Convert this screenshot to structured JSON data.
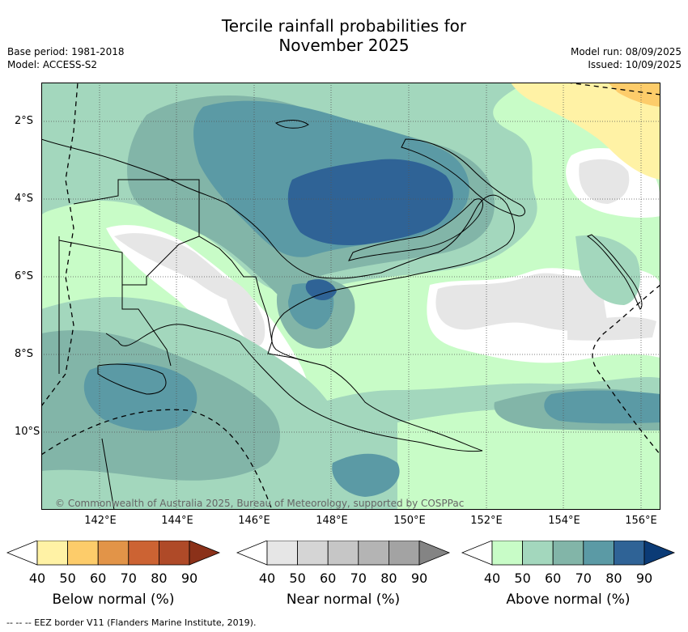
{
  "title": {
    "line1": "Tercile rainfall probabilities for",
    "line2": "November 2025"
  },
  "meta_left": {
    "base_period": "Base period: 1981-2018",
    "model": "Model: ACCESS-S2"
  },
  "meta_right": {
    "model_run": "Model run: 08/09/2025",
    "issued": "Issued: 10/09/2025"
  },
  "map": {
    "copyright": "© Commonwealth of Australia 2025, Bureau of Meteorology, supported by COSPPac",
    "lon_ticks": [
      "142°E",
      "144°E",
      "146°E",
      "148°E",
      "150°E",
      "152°E",
      "154°E",
      "156°E"
    ],
    "lat_ticks": [
      "2°S",
      "4°S",
      "6°S",
      "8°S",
      "10°S"
    ],
    "lon_range": [
      140.5,
      156.5
    ],
    "lat_range": [
      -12.0,
      -1.0
    ]
  },
  "colorbars": [
    {
      "name": "below",
      "label": "Below normal (%)",
      "ticks": [
        "40",
        "50",
        "60",
        "70",
        "80",
        "90"
      ],
      "colors": [
        "#fff2a5",
        "#fdcc6a",
        "#e29448",
        "#cc6333",
        "#af4a28",
        "#8b3119"
      ]
    },
    {
      "name": "near",
      "label": "Near normal (%)",
      "ticks": [
        "40",
        "50",
        "60",
        "70",
        "80",
        "90"
      ],
      "colors": [
        "#e6e6e6",
        "#d5d5d5",
        "#c6c6c6",
        "#b4b4b4",
        "#a3a3a3",
        "#848484"
      ]
    },
    {
      "name": "above",
      "label": "Above normal (%)",
      "ticks": [
        "40",
        "50",
        "60",
        "70",
        "80",
        "90"
      ],
      "colors": [
        "#c8fcc7",
        "#a3d7bd",
        "#82b5a8",
        "#5b9aa5",
        "#2f6396",
        "#0b3b76"
      ]
    }
  ],
  "footer": "--  --  -- EEZ border V11 (Flanders Marine Institute, 2019)."
}
